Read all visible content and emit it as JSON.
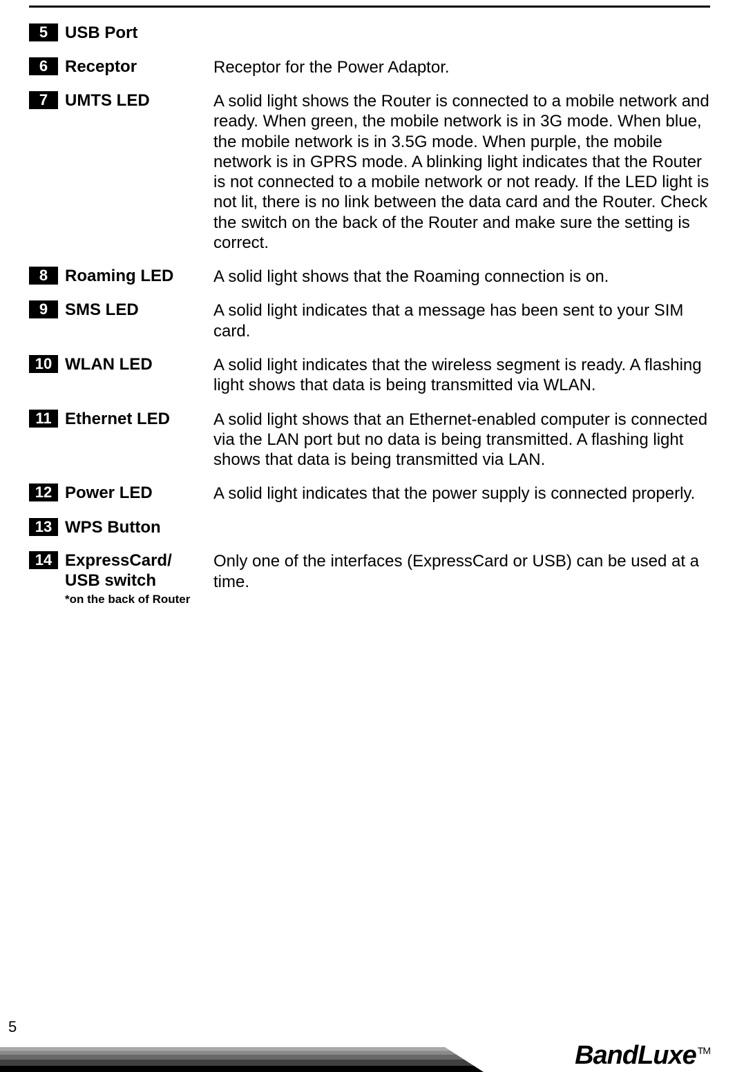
{
  "items": [
    {
      "number": "5",
      "label": "USB Port",
      "note": "",
      "desc": ""
    },
    {
      "number": "6",
      "label": "Receptor",
      "note": "",
      "desc": "Receptor for the Power Adaptor."
    },
    {
      "number": "7",
      "label": "UMTS LED",
      "note": "",
      "desc": "A solid light shows the Router is connected to a mobile network and ready. When green, the mobile network is in 3G mode. When blue, the mobile network is in 3.5G mode. When purple, the mobile network is in GPRS mode. A blinking light indicates that the Router is not connected to a mobile network or not ready. If the LED light is not lit, there is no link between the data card and the Router. Check the switch on the back of the Router and make sure the setting is correct."
    },
    {
      "number": "8",
      "label": "Roaming LED",
      "note": "",
      "desc": "A solid light shows that the Roaming connection is on."
    },
    {
      "number": "9",
      "label": "SMS LED",
      "note": "",
      "desc": "A solid light indicates that a message has been sent to your SIM card."
    },
    {
      "number": "10",
      "label": "WLAN LED",
      "note": "",
      "desc": "A solid light indicates that the wireless segment is ready. A flashing light shows that data is being transmitted via WLAN."
    },
    {
      "number": "11",
      "label": "Ethernet LED",
      "note": "",
      "desc": "A solid light shows that an Ethernet-enabled computer is connected via the LAN port but no data is being transmitted. A flashing light shows that data is being transmitted via LAN."
    },
    {
      "number": "12",
      "label": "Power LED",
      "note": "",
      "desc": "A solid light indicates that the power supply is connected properly."
    },
    {
      "number": "13",
      "label": "WPS Button",
      "note": "",
      "desc": ""
    },
    {
      "number": "14",
      "label": "ExpressCard/\nUSB switch",
      "note": "*on the back of Router",
      "desc": "Only one of the interfaces (ExpressCard or USB) can be used at a time."
    }
  ],
  "page_number": "5",
  "brand": "BandLuxe",
  "trademark": "TM"
}
